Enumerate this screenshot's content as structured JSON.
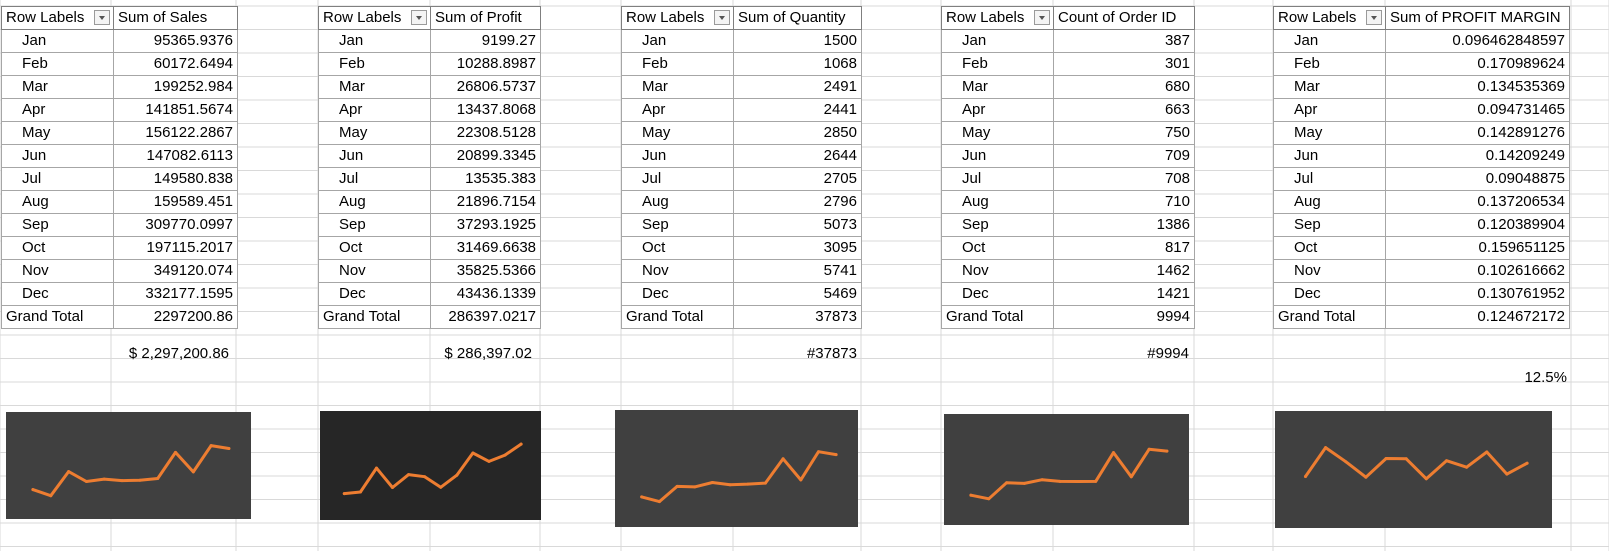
{
  "months": [
    "Jan",
    "Feb",
    "Mar",
    "Apr",
    "May",
    "Jun",
    "Jul",
    "Aug",
    "Sep",
    "Oct",
    "Nov",
    "Dec"
  ],
  "colors": {
    "line": "#ed7d31",
    "chart_bg": "#404040",
    "chart_bg_dark": "#262626",
    "grid": "#d9d9d9"
  },
  "pivots": [
    {
      "row_header": "Row Labels",
      "value_header": "Sum of Sales",
      "values": [
        "95365.9376",
        "60172.6494",
        "199252.984",
        "141851.5674",
        "156122.2867",
        "147082.6113",
        "149580.838",
        "159589.451",
        "309770.0997",
        "197115.2017",
        "349120.074",
        "332177.1595"
      ],
      "grand_total_label": "Grand Total",
      "grand_total": "2297200.86",
      "formatted": "$ 2,297,200.86"
    },
    {
      "row_header": "Row Labels",
      "value_header": "Sum of Profit",
      "values": [
        "9199.27",
        "10288.8987",
        "26806.5737",
        "13437.8068",
        "22308.5128",
        "20899.3345",
        "13535.383",
        "21896.7154",
        "37293.1925",
        "31469.6638",
        "35825.5366",
        "43436.1339"
      ],
      "grand_total_label": "Grand Total",
      "grand_total": "286397.0217",
      "formatted": "$ 286,397.02"
    },
    {
      "row_header": "Row Labels",
      "value_header": "Sum of Quantity",
      "values": [
        "1500",
        "1068",
        "2491",
        "2441",
        "2850",
        "2644",
        "2705",
        "2796",
        "5073",
        "3095",
        "5741",
        "5469"
      ],
      "grand_total_label": "Grand Total",
      "grand_total": "37873",
      "formatted": "#37873"
    },
    {
      "row_header": "Row Labels",
      "value_header": "Count of Order ID",
      "values": [
        "387",
        "301",
        "680",
        "663",
        "750",
        "709",
        "708",
        "710",
        "1386",
        "817",
        "1462",
        "1421"
      ],
      "grand_total_label": "Grand Total",
      "grand_total": "9994",
      "formatted": "#9994"
    },
    {
      "row_header": "Row Labels",
      "value_header": "Sum of PROFIT MARGIN",
      "values": [
        "0.096462848597",
        "0.170989624",
        "0.134535369",
        "0.094731465",
        "0.142891276",
        "0.14209249",
        "0.09048875",
        "0.137206534",
        "0.120389904",
        "0.159651125",
        "0.102616662",
        "0.130761952"
      ],
      "grand_total_label": "Grand Total",
      "grand_total": "0.124672172",
      "formatted": "12.5%"
    }
  ],
  "chart_data": [
    {
      "type": "line",
      "categories": [
        "Jan",
        "Feb",
        "Mar",
        "Apr",
        "May",
        "Jun",
        "Jul",
        "Aug",
        "Sep",
        "Oct",
        "Nov",
        "Dec"
      ],
      "values": [
        95365.9376,
        60172.6494,
        199252.984,
        141851.5674,
        156122.2867,
        147082.6113,
        149580.838,
        159589.451,
        309770.0997,
        197115.2017,
        349120.074,
        332177.1595
      ],
      "ylim": [
        0,
        450000
      ],
      "grid": false
    },
    {
      "type": "line",
      "categories": [
        "Jan",
        "Feb",
        "Mar",
        "Apr",
        "May",
        "Jun",
        "Jul",
        "Aug",
        "Sep",
        "Oct",
        "Nov",
        "Dec"
      ],
      "values": [
        9199.27,
        10288.8987,
        26806.5737,
        13437.8068,
        22308.5128,
        20899.3345,
        13535.383,
        21896.7154,
        37293.1925,
        31469.6638,
        35825.5366,
        43436.1339
      ],
      "ylim": [
        0,
        55000
      ],
      "grid": false
    },
    {
      "type": "line",
      "categories": [
        "Jan",
        "Feb",
        "Mar",
        "Apr",
        "May",
        "Jun",
        "Jul",
        "Aug",
        "Sep",
        "Oct",
        "Nov",
        "Dec"
      ],
      "values": [
        1500,
        1068,
        2491,
        2441,
        2850,
        2644,
        2705,
        2796,
        5073,
        3095,
        5741,
        5469
      ],
      "ylim": [
        0,
        8000
      ],
      "grid": false
    },
    {
      "type": "line",
      "categories": [
        "Jan",
        "Feb",
        "Mar",
        "Apr",
        "May",
        "Jun",
        "Jul",
        "Aug",
        "Sep",
        "Oct",
        "Nov",
        "Dec"
      ],
      "values": [
        387,
        301,
        680,
        663,
        750,
        709,
        708,
        710,
        1386,
        817,
        1462,
        1421
      ],
      "ylim": [
        0,
        1900
      ],
      "grid": false
    },
    {
      "type": "line",
      "categories": [
        "Jan",
        "Feb",
        "Mar",
        "Apr",
        "May",
        "Jun",
        "Jul",
        "Aug",
        "Sep",
        "Oct",
        "Nov",
        "Dec"
      ],
      "values": [
        0.096462848597,
        0.170989624,
        0.134535369,
        0.094731465,
        0.142891276,
        0.14209249,
        0.09048875,
        0.137206534,
        0.120389904,
        0.159651125,
        0.102616662,
        0.130761952
      ],
      "ylim": [
        0,
        0.22
      ],
      "grid": false
    }
  ]
}
